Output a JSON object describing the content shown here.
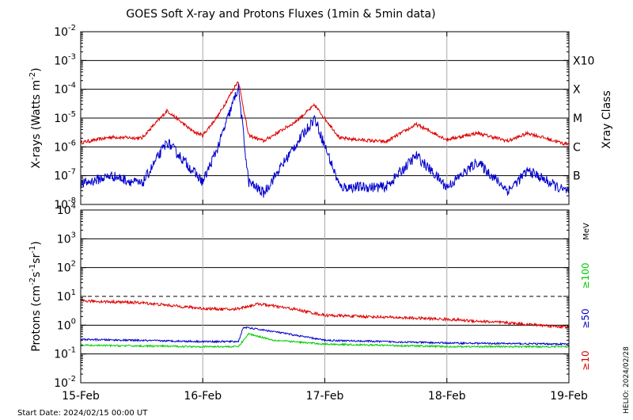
{
  "chart_data": [
    {
      "type": "line",
      "title": "GOES Soft X-ray and Protons Fluxes   (1min & 5min data)",
      "ylabel_base": "X-rays (Watts m",
      "ylabel_exp": "-2",
      "ylabel_close": ")",
      "y_scale": "log",
      "ylim": [
        1e-08,
        0.01
      ],
      "y_ticks": [
        {
          "exp": "-8",
          "value": 1e-08
        },
        {
          "exp": "-7",
          "value": 1e-07
        },
        {
          "exp": "-6",
          "value": 1e-06
        },
        {
          "exp": "-5",
          "value": 1e-05
        },
        {
          "exp": "-4",
          "value": 0.0001
        },
        {
          "exp": "-3",
          "value": 0.001
        },
        {
          "exp": "-2",
          "value": 0.01
        }
      ],
      "x_ticks": [
        "15-Feb",
        "16-Feb",
        "17-Feb",
        "18-Feb",
        "19-Feb"
      ],
      "xlim": [
        "2024-02-15",
        "2024-02-19"
      ],
      "grid": true,
      "right_axis_label": "Xray Class",
      "classes": [
        {
          "label": "B",
          "value": 1e-07
        },
        {
          "label": "C",
          "value": 1e-06
        },
        {
          "label": "M",
          "value": 1e-05
        },
        {
          "label": "X",
          "value": 0.0001
        },
        {
          "label": "X10",
          "value": 0.001
        }
      ],
      "series": [
        {
          "color": "#dd0000",
          "points": [
            [
              "2024-02-15T00:00",
              1.4e-06
            ],
            [
              "2024-02-15T06:00",
              2.2e-06
            ],
            [
              "2024-02-15T12:00",
              2e-06
            ],
            [
              "2024-02-15T17:00",
              1.8e-05
            ],
            [
              "2024-02-15T22:00",
              3.5e-06
            ],
            [
              "2024-02-16T00:00",
              2.5e-06
            ],
            [
              "2024-02-16T03:00",
              1.2e-05
            ],
            [
              "2024-02-16T07:00",
              0.0002
            ],
            [
              "2024-02-16T09:00",
              2.5e-06
            ],
            [
              "2024-02-16T12:00",
              1.6e-06
            ],
            [
              "2024-02-16T18:00",
              7e-06
            ],
            [
              "2024-02-16T22:00",
              2.8e-05
            ],
            [
              "2024-02-17T03:00",
              2e-06
            ],
            [
              "2024-02-17T12:00",
              1.5e-06
            ],
            [
              "2024-02-17T18:00",
              6e-06
            ],
            [
              "2024-02-18T00:00",
              1.8e-06
            ],
            [
              "2024-02-18T06:00",
              3e-06
            ],
            [
              "2024-02-18T12:00",
              1.6e-06
            ],
            [
              "2024-02-18T16:00",
              3e-06
            ],
            [
              "2024-02-18T23:00",
              1.3e-06
            ]
          ]
        },
        {
          "color": "#0000cc",
          "points": [
            [
              "2024-02-15T00:00",
              5e-08
            ],
            [
              "2024-02-15T06:00",
              1e-07
            ],
            [
              "2024-02-15T12:00",
              5e-08
            ],
            [
              "2024-02-15T17:00",
              1.5e-06
            ],
            [
              "2024-02-15T22:00",
              1.5e-07
            ],
            [
              "2024-02-16T00:00",
              6e-08
            ],
            [
              "2024-02-16T03:00",
              1e-06
            ],
            [
              "2024-02-16T07:00",
              0.00012
            ],
            [
              "2024-02-16T09:00",
              6e-08
            ],
            [
              "2024-02-16T12:00",
              2.5e-08
            ],
            [
              "2024-02-16T18:00",
              1e-06
            ],
            [
              "2024-02-16T22:00",
              1e-05
            ],
            [
              "2024-02-17T03:00",
              4e-08
            ],
            [
              "2024-02-17T12:00",
              4e-08
            ],
            [
              "2024-02-17T18:00",
              5e-07
            ],
            [
              "2024-02-18T00:00",
              4e-08
            ],
            [
              "2024-02-18T06:00",
              3e-07
            ],
            [
              "2024-02-18T12:00",
              3e-08
            ],
            [
              "2024-02-18T16:00",
              1.5e-07
            ],
            [
              "2024-02-18T23:00",
              3e-08
            ]
          ]
        }
      ]
    },
    {
      "type": "line",
      "ylabel_base": "Protons (cm",
      "ylabel_sup1": "-2",
      "ylabel_mid1": "s",
      "ylabel_sup2": "-1",
      "ylabel_mid2": "sr",
      "ylabel_sup3": "-1",
      "ylabel_close": ")",
      "y_scale": "log",
      "ylim": [
        0.01,
        10000
      ],
      "y_ticks": [
        {
          "exp": "-2",
          "value": 0.01
        },
        {
          "exp": "-1",
          "value": 0.1
        },
        {
          "exp": "0",
          "value": 1
        },
        {
          "exp": "1",
          "value": 10
        },
        {
          "exp": "2",
          "value": 100
        },
        {
          "exp": "3",
          "value": 1000
        },
        {
          "exp": "4",
          "value": 10000
        }
      ],
      "x_ticks": [
        "15-Feb",
        "16-Feb",
        "17-Feb",
        "18-Feb",
        "19-Feb"
      ],
      "xlim": [
        "2024-02-15",
        "2024-02-19"
      ],
      "threshold": 10,
      "units_label": "MeV",
      "legend": [
        {
          "label": "≥100",
          "color": "#00cc00"
        },
        {
          "label": "≥50",
          "color": "#0000cc"
        },
        {
          "label": "≥10",
          "color": "#dd0000"
        }
      ],
      "series": [
        {
          "color": "#dd0000",
          "points": [
            [
              "2024-02-15T00:00",
              7.0
            ],
            [
              "2024-02-15T12:00",
              6.0
            ],
            [
              "2024-02-16T00:00",
              3.8
            ],
            [
              "2024-02-16T06:00",
              3.5
            ],
            [
              "2024-02-16T11:00",
              5.5
            ],
            [
              "2024-02-16T18:00",
              3.6
            ],
            [
              "2024-02-17T00:00",
              2.2
            ],
            [
              "2024-02-17T12:00",
              1.9
            ],
            [
              "2024-02-18T00:00",
              1.6
            ],
            [
              "2024-02-18T12:00",
              1.2
            ],
            [
              "2024-02-19T00:00",
              0.85
            ]
          ]
        },
        {
          "color": "#0000cc",
          "points": [
            [
              "2024-02-15T00:00",
              0.32
            ],
            [
              "2024-02-16T00:00",
              0.27
            ],
            [
              "2024-02-16T07:00",
              0.27
            ],
            [
              "2024-02-16T08:00",
              0.85
            ],
            [
              "2024-02-16T14:00",
              0.6
            ],
            [
              "2024-02-17T00:00",
              0.3
            ],
            [
              "2024-02-18T00:00",
              0.24
            ],
            [
              "2024-02-19T00:00",
              0.22
            ]
          ]
        },
        {
          "color": "#00cc00",
          "points": [
            [
              "2024-02-15T00:00",
              0.2
            ],
            [
              "2024-02-16T00:00",
              0.18
            ],
            [
              "2024-02-16T07:00",
              0.18
            ],
            [
              "2024-02-16T09:00",
              0.5
            ],
            [
              "2024-02-16T14:00",
              0.3
            ],
            [
              "2024-02-17T00:00",
              0.22
            ],
            [
              "2024-02-18T00:00",
              0.18
            ],
            [
              "2024-02-19T00:00",
              0.18
            ]
          ]
        }
      ]
    }
  ],
  "footer": {
    "start_date": "Start Date: 2024/02/15 00:00 UT",
    "credit": "HELIO: 2024/02/28"
  }
}
